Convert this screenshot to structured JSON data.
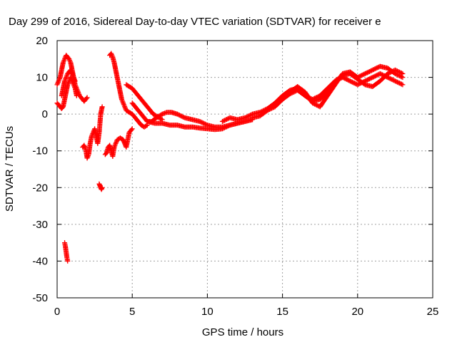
{
  "chart_data": {
    "type": "scatter",
    "title": "Day 299 of 2016, Sidereal Day-to-day VTEC variation (SDTVAR) for receiver e",
    "xlabel": "GPS time / hours",
    "ylabel": "SDTVAR / TECUs",
    "xlim": [
      0,
      25
    ],
    "ylim": [
      -50,
      20
    ],
    "xticks": [
      0,
      5,
      10,
      15,
      20,
      25
    ],
    "yticks": [
      -50,
      -40,
      -30,
      -20,
      -10,
      0,
      10,
      20
    ],
    "grid": true,
    "marker": "+",
    "color": "#ff0000",
    "series": [
      {
        "x": [
          0.0,
          0.1,
          0.2,
          0.3,
          0.4,
          0.5,
          0.6,
          0.7,
          0.8,
          0.9,
          1.0,
          1.1,
          1.2,
          1.3,
          1.4,
          1.5,
          1.6,
          1.7,
          1.8,
          1.9,
          2.0
        ],
        "y": [
          8,
          9,
          10,
          12,
          14,
          15,
          16,
          15.5,
          15,
          14,
          12,
          10,
          8,
          7,
          6,
          5,
          4.5,
          4,
          3.5,
          4,
          4.5
        ]
      },
      {
        "x": [
          0.0,
          0.1,
          0.2,
          0.3,
          0.4,
          0.5,
          0.6,
          0.7,
          0.8,
          0.9,
          1.0,
          1.1,
          1.2,
          1.3
        ],
        "y": [
          3,
          2.5,
          2,
          1.5,
          2,
          4,
          6,
          8,
          9,
          10,
          9,
          8,
          7,
          5
        ]
      },
      {
        "x": [
          0.3,
          0.4,
          0.5,
          0.6,
          0.7,
          0.8,
          0.9,
          1.0,
          1.1,
          1.2
        ],
        "y": [
          5,
          7,
          9,
          10,
          11,
          11.5,
          12,
          11,
          10,
          9
        ]
      },
      {
        "x": [
          0.5,
          0.55,
          0.6,
          0.65,
          0.7
        ],
        "y": [
          -35,
          -36,
          -37.5,
          -39,
          -40
        ]
      },
      {
        "x": [
          1.7,
          1.8,
          1.9,
          2.0,
          2.1,
          2.2,
          2.3,
          2.4,
          2.5,
          2.6,
          2.7,
          2.8,
          2.9,
          3.0
        ],
        "y": [
          -9,
          -8.5,
          -9.5,
          -12,
          -11,
          -8,
          -6,
          -5,
          -4,
          -6,
          -8,
          -5,
          0,
          2
        ]
      },
      {
        "x": [
          2.8,
          2.85,
          2.9,
          2.95,
          3.0
        ],
        "y": [
          -19,
          -19.5,
          -20,
          -20.5,
          -20
        ]
      },
      {
        "x": [
          3.2,
          3.3,
          3.4,
          3.5,
          3.6,
          3.7,
          3.8,
          3.9,
          4.0,
          4.2,
          4.4,
          4.6,
          4.8,
          5.0
        ],
        "y": [
          -11,
          -10.5,
          -9,
          -8.5,
          -10,
          -11.5,
          -9,
          -8,
          -7,
          -6.5,
          -7,
          -9,
          -5,
          -4
        ]
      },
      {
        "x": [
          3.5,
          3.6,
          3.7,
          3.8,
          3.9,
          4.0,
          4.1,
          4.2,
          4.3,
          4.4,
          4.5,
          4.6,
          4.8,
          5.0,
          5.2,
          5.4,
          5.6,
          5.8,
          6.0
        ],
        "y": [
          16,
          16.5,
          15.5,
          14,
          12,
          10,
          8,
          6,
          4,
          3,
          2,
          1,
          0.5,
          0,
          -1,
          -2,
          -3,
          -3.5,
          -3
        ]
      },
      {
        "x": [
          4.6,
          4.8,
          5.0,
          5.2,
          5.4,
          5.6,
          5.8,
          6.0,
          6.2,
          6.4,
          6.6,
          6.8,
          7.0
        ],
        "y": [
          8,
          7.5,
          7,
          6,
          5,
          4,
          3,
          2,
          1,
          0,
          -0.5,
          -1,
          -1.5
        ]
      },
      {
        "x": [
          5.0,
          5.2,
          5.4,
          5.6,
          5.8,
          6.0,
          6.3,
          6.6,
          7.0,
          7.3,
          7.6,
          8.0,
          8.5,
          9.0,
          9.5,
          10.0,
          10.5,
          11.0,
          11.5,
          12.0,
          12.5,
          13.0
        ],
        "y": [
          3,
          2,
          1,
          0,
          -1,
          -2,
          -2,
          -1,
          0,
          0.5,
          0.5,
          0,
          -1,
          -1.5,
          -2,
          -3,
          -3.5,
          -3.5,
          -3,
          -2.5,
          -2,
          -1.5
        ]
      },
      {
        "x": [
          6.0,
          6.5,
          7.0,
          7.5,
          8.0,
          8.5,
          9.0,
          9.5,
          10.0,
          10.5,
          11.0,
          11.5,
          12.0,
          12.5,
          13.0
        ],
        "y": [
          -2,
          -2.5,
          -2.5,
          -3,
          -3,
          -3.5,
          -3.5,
          -3.8,
          -4,
          -4.2,
          -4,
          -3,
          -2.5,
          -2,
          -1.5
        ]
      },
      {
        "x": [
          11.0,
          11.5,
          12.0,
          12.5,
          13.0,
          13.5,
          14.0,
          14.5,
          15.0,
          15.5,
          16.0,
          16.5,
          17.0,
          17.5,
          18.0,
          18.5,
          19.0,
          19.5,
          20.0,
          20.5,
          21.0,
          21.5,
          22.0,
          22.5,
          23.0
        ],
        "y": [
          -2,
          -1,
          -1.5,
          -1,
          0,
          0.5,
          1.5,
          3,
          5,
          6.5,
          7,
          5,
          4,
          5,
          7,
          9,
          10,
          9,
          8,
          9,
          10,
          11,
          10,
          9,
          8
        ]
      },
      {
        "x": [
          13.0,
          13.5,
          14.0,
          14.5,
          15.0,
          15.5,
          16.0,
          16.5,
          17.0,
          17.5,
          18.0,
          18.5,
          19.0,
          19.5,
          20.0,
          20.5,
          21.0,
          21.5,
          22.0,
          22.5,
          23.0
        ],
        "y": [
          -1,
          -0.5,
          1,
          2,
          4,
          6,
          7.5,
          6,
          3,
          2,
          5,
          8,
          11,
          11.5,
          10,
          11,
          12,
          13,
          12.5,
          11,
          10
        ]
      },
      {
        "x": [
          15.0,
          15.5,
          16.0,
          16.5,
          17.0,
          17.5,
          18.0,
          18.5,
          19.0,
          19.5,
          20.0,
          20.5,
          21.0,
          21.5,
          22.0,
          22.5,
          23.0
        ],
        "y": [
          4,
          5.5,
          6.5,
          5,
          3.5,
          4,
          6,
          9,
          10.5,
          11,
          9.5,
          8,
          7.5,
          9,
          11,
          12,
          11
        ]
      }
    ]
  }
}
